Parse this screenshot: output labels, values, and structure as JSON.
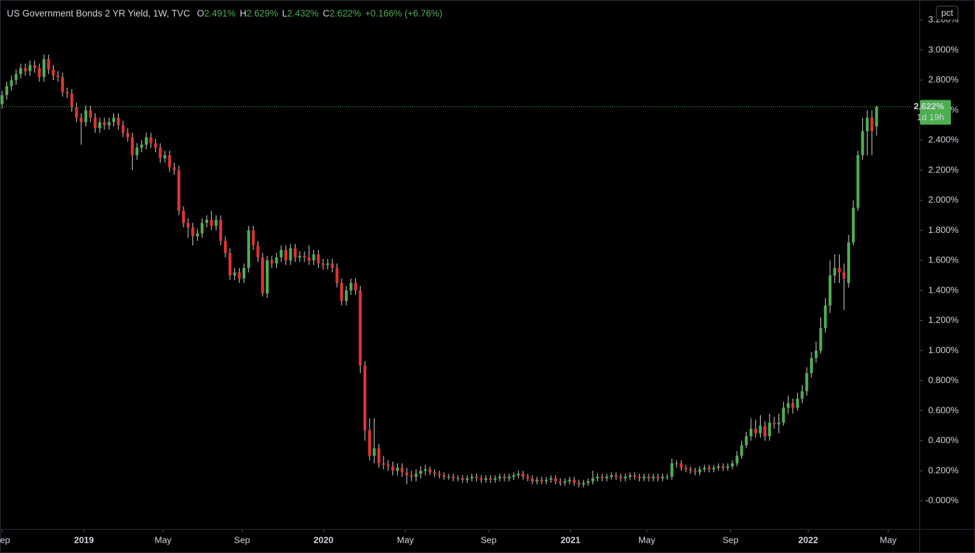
{
  "chart_data": {
    "type": "candlestick",
    "title": "US Government Bonds 2 YR Yield, 1W, TVC",
    "legend_items": [
      {
        "key": "O",
        "value": "2.491%"
      },
      {
        "key": "H",
        "value": "2.629%"
      },
      {
        "key": "L",
        "value": "2.432%"
      },
      {
        "key": "C",
        "value": "2.622%"
      }
    ],
    "change": "+0.166% (+6.76%)",
    "scale_button": "pct",
    "last_price_label": "2.622%",
    "countdown": "1d 19h",
    "up_color": "#4caf50",
    "down_color": "#e2332f",
    "xlim": [
      -0.45,
      197.05
    ],
    "xticks": [
      {
        "value": 0,
        "label": "Sep"
      },
      {
        "value": 17.6,
        "label": "2019"
      },
      {
        "value": 34.6,
        "label": "May"
      },
      {
        "value": 51.6,
        "label": "Sep"
      },
      {
        "value": 69.1,
        "label": "2020"
      },
      {
        "value": 86.7,
        "label": "May"
      },
      {
        "value": 104.6,
        "label": "Sep"
      },
      {
        "value": 122.2,
        "label": "2021"
      },
      {
        "value": 138.6,
        "label": "May"
      },
      {
        "value": 156.6,
        "label": "Sep"
      },
      {
        "value": 173.3,
        "label": "2022"
      },
      {
        "value": 190.5,
        "label": "May"
      }
    ],
    "ylim": [
      -0.187,
      3.333
    ],
    "yticks": [
      {
        "value": 0,
        "label": "-0.000%"
      },
      {
        "value": 0.2,
        "label": "0.200%"
      },
      {
        "value": 0.4,
        "label": "0.400%"
      },
      {
        "value": 0.6,
        "label": "0.600%"
      },
      {
        "value": 0.8,
        "label": "0.800%"
      },
      {
        "value": 1.0,
        "label": "1.000%"
      },
      {
        "value": 1.2,
        "label": "1.200%"
      },
      {
        "value": 1.4,
        "label": "1.400%"
      },
      {
        "value": 1.6,
        "label": "1.600%"
      },
      {
        "value": 1.8,
        "label": "1.800%"
      },
      {
        "value": 2.0,
        "label": "2.000%"
      },
      {
        "value": 2.2,
        "label": "2.200%"
      },
      {
        "value": 2.4,
        "label": "2.400%"
      },
      {
        "value": 2.6,
        "label": "2.600%"
      },
      {
        "value": 2.8,
        "label": "2.800%"
      },
      {
        "value": 3.0,
        "label": "3.000%"
      },
      {
        "value": 3.2,
        "label": "3.200%"
      }
    ],
    "open": [
      2.64,
      2.7,
      2.76,
      2.8,
      2.84,
      2.88,
      2.86,
      2.9,
      2.88,
      2.82,
      2.94,
      2.87,
      2.83,
      2.82,
      2.72,
      2.71,
      2.62,
      2.55,
      2.52,
      2.6,
      2.55,
      2.48,
      2.52,
      2.5,
      2.52,
      2.55,
      2.5,
      2.45,
      2.42,
      2.3,
      2.35,
      2.37,
      2.42,
      2.38,
      2.35,
      2.28,
      2.3,
      2.22,
      2.2,
      1.93,
      1.85,
      1.82,
      1.76,
      1.78,
      1.85,
      1.87,
      1.83,
      1.87,
      1.73,
      1.65,
      1.5,
      1.52,
      1.48,
      1.55,
      1.8,
      1.7,
      1.62,
      1.38,
      1.6,
      1.58,
      1.62,
      1.67,
      1.6,
      1.68,
      1.62,
      1.63,
      1.62,
      1.6,
      1.64,
      1.58,
      1.57,
      1.58,
      1.55,
      1.45,
      1.33,
      1.4,
      1.45,
      1.4,
      0.9,
      0.47,
      0.3,
      0.35,
      0.25,
      0.24,
      0.23,
      0.2,
      0.22,
      0.19,
      0.17,
      0.16,
      0.18,
      0.2,
      0.21,
      0.19,
      0.18,
      0.17,
      0.16,
      0.16,
      0.15,
      0.15,
      0.14,
      0.15,
      0.16,
      0.15,
      0.14,
      0.15,
      0.14,
      0.15,
      0.16,
      0.15,
      0.16,
      0.17,
      0.18,
      0.16,
      0.15,
      0.13,
      0.14,
      0.13,
      0.14,
      0.15,
      0.13,
      0.12,
      0.13,
      0.14,
      0.12,
      0.11,
      0.12,
      0.13,
      0.15,
      0.16,
      0.15,
      0.16,
      0.17,
      0.16,
      0.15,
      0.16,
      0.17,
      0.16,
      0.15,
      0.16,
      0.15,
      0.16,
      0.15,
      0.16,
      0.16,
      0.25,
      0.25,
      0.22,
      0.21,
      0.2,
      0.19,
      0.21,
      0.22,
      0.21,
      0.22,
      0.23,
      0.22,
      0.23,
      0.25,
      0.3,
      0.37,
      0.43,
      0.48,
      0.45,
      0.5,
      0.43,
      0.52,
      0.51,
      0.52,
      0.62,
      0.65,
      0.62,
      0.68,
      0.73,
      0.85,
      0.95,
      1.0,
      1.15,
      1.3,
      1.5,
      1.55,
      1.52,
      1.45,
      1.72,
      1.95,
      2.3,
      2.46,
      2.55,
      2.491
    ],
    "high": [
      2.73,
      2.79,
      2.83,
      2.87,
      2.91,
      2.91,
      2.93,
      2.93,
      2.91,
      2.97,
      2.97,
      2.9,
      2.86,
      2.85,
      2.75,
      2.74,
      2.65,
      2.58,
      2.63,
      2.63,
      2.58,
      2.55,
      2.55,
      2.55,
      2.58,
      2.58,
      2.53,
      2.48,
      2.45,
      2.38,
      2.4,
      2.45,
      2.45,
      2.41,
      2.38,
      2.33,
      2.33,
      2.25,
      2.23,
      1.96,
      1.88,
      1.85,
      1.81,
      1.88,
      1.9,
      1.93,
      1.9,
      1.9,
      1.76,
      1.68,
      1.55,
      1.55,
      1.58,
      1.83,
      1.83,
      1.73,
      1.65,
      1.63,
      1.63,
      1.65,
      1.7,
      1.7,
      1.71,
      1.71,
      1.66,
      1.66,
      1.7,
      1.67,
      1.67,
      1.61,
      1.61,
      1.61,
      1.58,
      1.48,
      1.43,
      1.48,
      1.48,
      1.43,
      0.93,
      0.55,
      0.55,
      0.38,
      0.3,
      0.27,
      0.26,
      0.25,
      0.25,
      0.22,
      0.2,
      0.21,
      0.23,
      0.24,
      0.23,
      0.21,
      0.2,
      0.19,
      0.18,
      0.18,
      0.17,
      0.17,
      0.17,
      0.18,
      0.18,
      0.17,
      0.17,
      0.17,
      0.17,
      0.18,
      0.18,
      0.18,
      0.19,
      0.2,
      0.2,
      0.18,
      0.17,
      0.16,
      0.16,
      0.16,
      0.17,
      0.17,
      0.15,
      0.15,
      0.16,
      0.16,
      0.14,
      0.14,
      0.15,
      0.2,
      0.18,
      0.18,
      0.18,
      0.19,
      0.19,
      0.18,
      0.18,
      0.19,
      0.19,
      0.18,
      0.18,
      0.18,
      0.18,
      0.18,
      0.18,
      0.18,
      0.28,
      0.27,
      0.27,
      0.24,
      0.23,
      0.22,
      0.23,
      0.24,
      0.24,
      0.24,
      0.25,
      0.25,
      0.25,
      0.27,
      0.33,
      0.4,
      0.46,
      0.55,
      0.54,
      0.57,
      0.53,
      0.58,
      0.56,
      0.58,
      0.66,
      0.7,
      0.68,
      0.72,
      0.77,
      0.89,
      0.99,
      1.06,
      1.22,
      1.35,
      1.6,
      1.64,
      1.64,
      1.58,
      1.77,
      2.0,
      2.33,
      2.55,
      2.6,
      2.6,
      2.629
    ],
    "low": [
      2.61,
      2.67,
      2.73,
      2.77,
      2.81,
      2.83,
      2.83,
      2.85,
      2.79,
      2.79,
      2.84,
      2.8,
      2.79,
      2.69,
      2.68,
      2.59,
      2.52,
      2.37,
      2.49,
      2.52,
      2.45,
      2.45,
      2.47,
      2.47,
      2.49,
      2.47,
      2.42,
      2.39,
      2.2,
      2.27,
      2.32,
      2.34,
      2.35,
      2.32,
      2.25,
      2.25,
      2.19,
      2.17,
      1.9,
      1.82,
      1.75,
      1.7,
      1.73,
      1.75,
      1.82,
      1.8,
      1.8,
      1.7,
      1.62,
      1.47,
      1.47,
      1.45,
      1.45,
      1.52,
      1.67,
      1.59,
      1.36,
      1.35,
      1.55,
      1.55,
      1.59,
      1.57,
      1.57,
      1.59,
      1.59,
      1.59,
      1.57,
      1.57,
      1.55,
      1.54,
      1.54,
      1.52,
      1.42,
      1.3,
      1.3,
      1.37,
      1.37,
      0.85,
      0.4,
      0.27,
      0.25,
      0.22,
      0.21,
      0.2,
      0.17,
      0.17,
      0.16,
      0.11,
      0.13,
      0.13,
      0.15,
      0.17,
      0.17,
      0.16,
      0.15,
      0.14,
      0.14,
      0.13,
      0.13,
      0.12,
      0.12,
      0.13,
      0.13,
      0.12,
      0.12,
      0.12,
      0.12,
      0.13,
      0.13,
      0.13,
      0.14,
      0.15,
      0.14,
      0.13,
      0.11,
      0.11,
      0.11,
      0.11,
      0.12,
      0.11,
      0.1,
      0.1,
      0.11,
      0.1,
      0.09,
      0.09,
      0.1,
      0.11,
      0.13,
      0.13,
      0.13,
      0.14,
      0.14,
      0.13,
      0.13,
      0.14,
      0.14,
      0.13,
      0.13,
      0.13,
      0.13,
      0.13,
      0.13,
      0.14,
      0.14,
      0.22,
      0.2,
      0.19,
      0.18,
      0.17,
      0.17,
      0.19,
      0.19,
      0.19,
      0.2,
      0.2,
      0.2,
      0.21,
      0.23,
      0.28,
      0.35,
      0.4,
      0.42,
      0.42,
      0.4,
      0.4,
      0.48,
      0.45,
      0.5,
      0.58,
      0.58,
      0.6,
      0.65,
      0.7,
      0.82,
      0.92,
      0.98,
      1.12,
      1.25,
      1.45,
      1.45,
      1.27,
      1.42,
      1.7,
      1.93,
      2.27,
      2.3,
      2.3,
      2.432
    ],
    "close": [
      2.7,
      2.76,
      2.8,
      2.84,
      2.88,
      2.86,
      2.9,
      2.88,
      2.82,
      2.94,
      2.87,
      2.83,
      2.82,
      2.72,
      2.71,
      2.62,
      2.55,
      2.52,
      2.6,
      2.55,
      2.48,
      2.52,
      2.5,
      2.52,
      2.55,
      2.5,
      2.45,
      2.42,
      2.3,
      2.35,
      2.37,
      2.42,
      2.38,
      2.35,
      2.28,
      2.3,
      2.22,
      2.2,
      1.93,
      1.85,
      1.82,
      1.76,
      1.78,
      1.85,
      1.87,
      1.83,
      1.87,
      1.73,
      1.65,
      1.5,
      1.52,
      1.48,
      1.55,
      1.8,
      1.7,
      1.62,
      1.38,
      1.6,
      1.58,
      1.62,
      1.67,
      1.6,
      1.68,
      1.62,
      1.63,
      1.62,
      1.6,
      1.64,
      1.58,
      1.57,
      1.58,
      1.55,
      1.45,
      1.33,
      1.4,
      1.45,
      1.4,
      0.9,
      0.47,
      0.3,
      0.35,
      0.25,
      0.24,
      0.23,
      0.2,
      0.22,
      0.19,
      0.17,
      0.16,
      0.18,
      0.2,
      0.21,
      0.19,
      0.18,
      0.17,
      0.16,
      0.16,
      0.15,
      0.15,
      0.14,
      0.15,
      0.16,
      0.15,
      0.14,
      0.15,
      0.14,
      0.15,
      0.16,
      0.15,
      0.16,
      0.17,
      0.18,
      0.16,
      0.15,
      0.13,
      0.14,
      0.13,
      0.14,
      0.15,
      0.13,
      0.12,
      0.13,
      0.14,
      0.12,
      0.11,
      0.12,
      0.13,
      0.15,
      0.16,
      0.15,
      0.16,
      0.17,
      0.16,
      0.15,
      0.16,
      0.17,
      0.16,
      0.15,
      0.16,
      0.15,
      0.16,
      0.15,
      0.16,
      0.16,
      0.25,
      0.25,
      0.22,
      0.21,
      0.2,
      0.19,
      0.21,
      0.22,
      0.21,
      0.22,
      0.23,
      0.22,
      0.23,
      0.25,
      0.3,
      0.37,
      0.43,
      0.48,
      0.45,
      0.5,
      0.43,
      0.52,
      0.51,
      0.52,
      0.62,
      0.65,
      0.62,
      0.68,
      0.73,
      0.85,
      0.95,
      1.0,
      1.15,
      1.3,
      1.5,
      1.55,
      1.52,
      1.48,
      1.72,
      1.95,
      2.3,
      2.46,
      2.55,
      2.46,
      2.622
    ]
  }
}
